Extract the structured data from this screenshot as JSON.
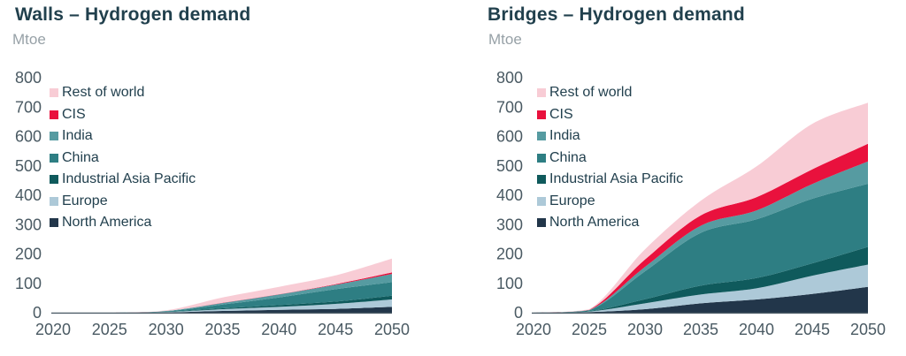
{
  "chart_data": [
    {
      "type": "area",
      "stacked": true,
      "title": "Walls – Hydrogen demand",
      "unit": "Mtoe",
      "x": [
        2020,
        2025,
        2030,
        2035,
        2040,
        2045,
        2050
      ],
      "x_tick_labels": [
        "2020",
        "2025",
        "2030",
        "2035",
        "2040",
        "2045",
        "2050"
      ],
      "y_ticks": [
        0,
        100,
        200,
        300,
        400,
        500,
        600,
        700,
        800
      ],
      "ylim": [
        0,
        800
      ],
      "grid": false,
      "legend_position": "inside-top-left",
      "legend_order_top_to_bottom": [
        "Rest of world",
        "CIS",
        "India",
        "China",
        "Industrial Asia Pacific",
        "Europe",
        "North America"
      ],
      "series": [
        {
          "name": "North America",
          "color": "#22364a",
          "values": [
            0,
            0,
            1,
            6,
            10,
            13,
            20
          ]
        },
        {
          "name": "Europe",
          "color": "#adc9d8",
          "values": [
            0,
            0,
            1,
            6,
            10,
            17,
            25
          ]
        },
        {
          "name": "Industrial Asia Pacific",
          "color": "#0f5a5c",
          "values": [
            0,
            0,
            1,
            3,
            6,
            8,
            13
          ]
        },
        {
          "name": "China",
          "color": "#2e7e83",
          "values": [
            0,
            0,
            2,
            13,
            26,
            42,
            46
          ]
        },
        {
          "name": "India",
          "color": "#569ba1",
          "values": [
            0,
            0,
            1,
            5,
            10,
            15,
            28
          ]
        },
        {
          "name": "CIS",
          "color": "#e9113d",
          "values": [
            0,
            0,
            0,
            1,
            1,
            2,
            5
          ]
        },
        {
          "name": "Rest of world",
          "color": "#f8ccd5",
          "values": [
            0,
            0,
            2,
            18,
            25,
            30,
            47
          ]
        }
      ]
    },
    {
      "type": "area",
      "stacked": true,
      "title": "Bridges – Hydrogen demand",
      "unit": "Mtoe",
      "x": [
        2020,
        2025,
        2030,
        2035,
        2040,
        2045,
        2050
      ],
      "x_tick_labels": [
        "2020",
        "2025",
        "2030",
        "2035",
        "2040",
        "2045",
        "2050"
      ],
      "y_ticks": [
        0,
        100,
        200,
        300,
        400,
        500,
        600,
        700,
        800
      ],
      "ylim": [
        0,
        800
      ],
      "grid": false,
      "legend_position": "inside-top-left",
      "legend_order_top_to_bottom": [
        "Rest of world",
        "CIS",
        "India",
        "China",
        "Industrial Asia Pacific",
        "Europe",
        "North America"
      ],
      "series": [
        {
          "name": "North America",
          "color": "#22364a",
          "values": [
            0,
            2,
            12,
            32,
            45,
            64,
            88
          ]
        },
        {
          "name": "Europe",
          "color": "#adc9d8",
          "values": [
            0,
            2,
            20,
            30,
            38,
            62,
            76
          ]
        },
        {
          "name": "Industrial Asia Pacific",
          "color": "#0f5a5c",
          "values": [
            0,
            1,
            14,
            30,
            35,
            42,
            60
          ]
        },
        {
          "name": "China",
          "color": "#2e7e83",
          "values": [
            0,
            3,
            95,
            180,
            200,
            220,
            215
          ]
        },
        {
          "name": "India",
          "color": "#569ba1",
          "values": [
            0,
            1,
            15,
            24,
            30,
            50,
            76
          ]
        },
        {
          "name": "CIS",
          "color": "#e9113d",
          "values": [
            0,
            1,
            25,
            35,
            45,
            50,
            60
          ]
        },
        {
          "name": "Rest of world",
          "color": "#f8ccd5",
          "values": [
            0,
            2,
            35,
            50,
            105,
            155,
            140
          ]
        }
      ]
    }
  ],
  "style": {
    "background": "#ffffff",
    "title_color": "#21404d",
    "unit_color": "#97a1a7",
    "axis_label_color": "#4a5a63",
    "axis_line_color": "#4e5e68",
    "legend_text_color": "#22404e"
  }
}
